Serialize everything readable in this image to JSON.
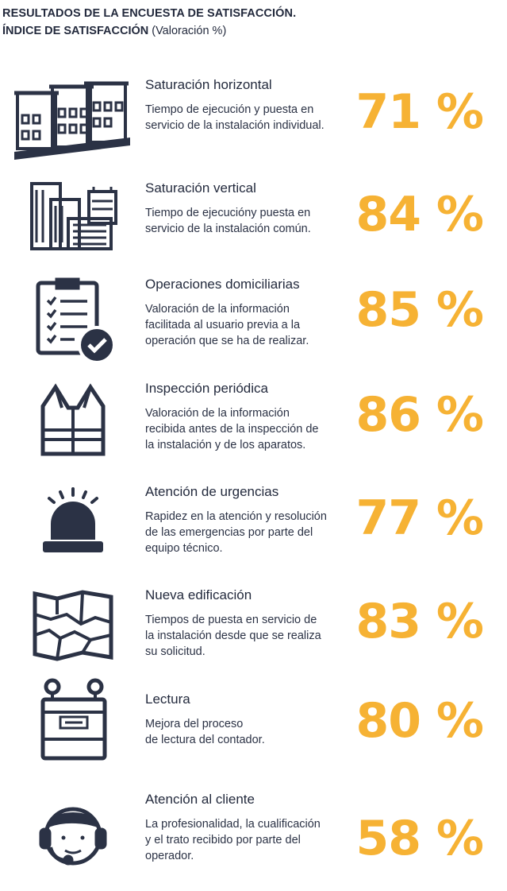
{
  "header": {
    "title": "RESULTADOS DE LA ENCUESTA DE SATISFACCIÓN.",
    "subtitle_strong": "ÍNDICE DE SATISFACCIÓN",
    "subtitle_light": "(Valoración %)"
  },
  "colors": {
    "accent": "#f6b234",
    "icon": "#2b3245",
    "text": "#232a3d"
  },
  "items": [
    {
      "icon": "buildings-row-icon",
      "title": "Saturación horizontal",
      "description": "Tiempo de ejecución y puesta en\nservicio de la instalación individual.",
      "value": "71 %"
    },
    {
      "icon": "skyscrapers-icon",
      "title": "Saturación vertical",
      "description": "Tiempo de ejecucióny puesta en\nservicio de la instalación común.",
      "value": "84 %"
    },
    {
      "icon": "clipboard-check-icon",
      "title": "Operaciones domiciliarias",
      "description": "Valoración de la información\nfacilitada al usuario previa a la\noperación que se ha de realizar.",
      "value": "85 %"
    },
    {
      "icon": "safety-vest-icon",
      "title": "Inspección periódica",
      "description": "Valoración de la información\nrecibida antes de la inspección de\nla instalación y de los aparatos.",
      "value": "86 %"
    },
    {
      "icon": "alarm-light-icon",
      "title": "Atención de urgencias",
      "description": "Rapidez en la atención y resolución\nde las emergencias por parte del\nequipo técnico.",
      "value": "77 %"
    },
    {
      "icon": "map-icon",
      "title": "Nueva edificación",
      "description": "Tiempos de puesta en servicio de\nla instalación desde que se realiza\nsu solicitud.",
      "value": "83 %"
    },
    {
      "icon": "gas-meter-icon",
      "title": "Lectura",
      "description": "Mejora del proceso\nde lectura del contador.",
      "value": "80 %"
    },
    {
      "icon": "headset-operator-icon",
      "title": "Atención al cliente",
      "description": "La profesionalidad, la cualificación\ny el trato recibido por parte del\noperador.",
      "value": "58 %"
    }
  ]
}
